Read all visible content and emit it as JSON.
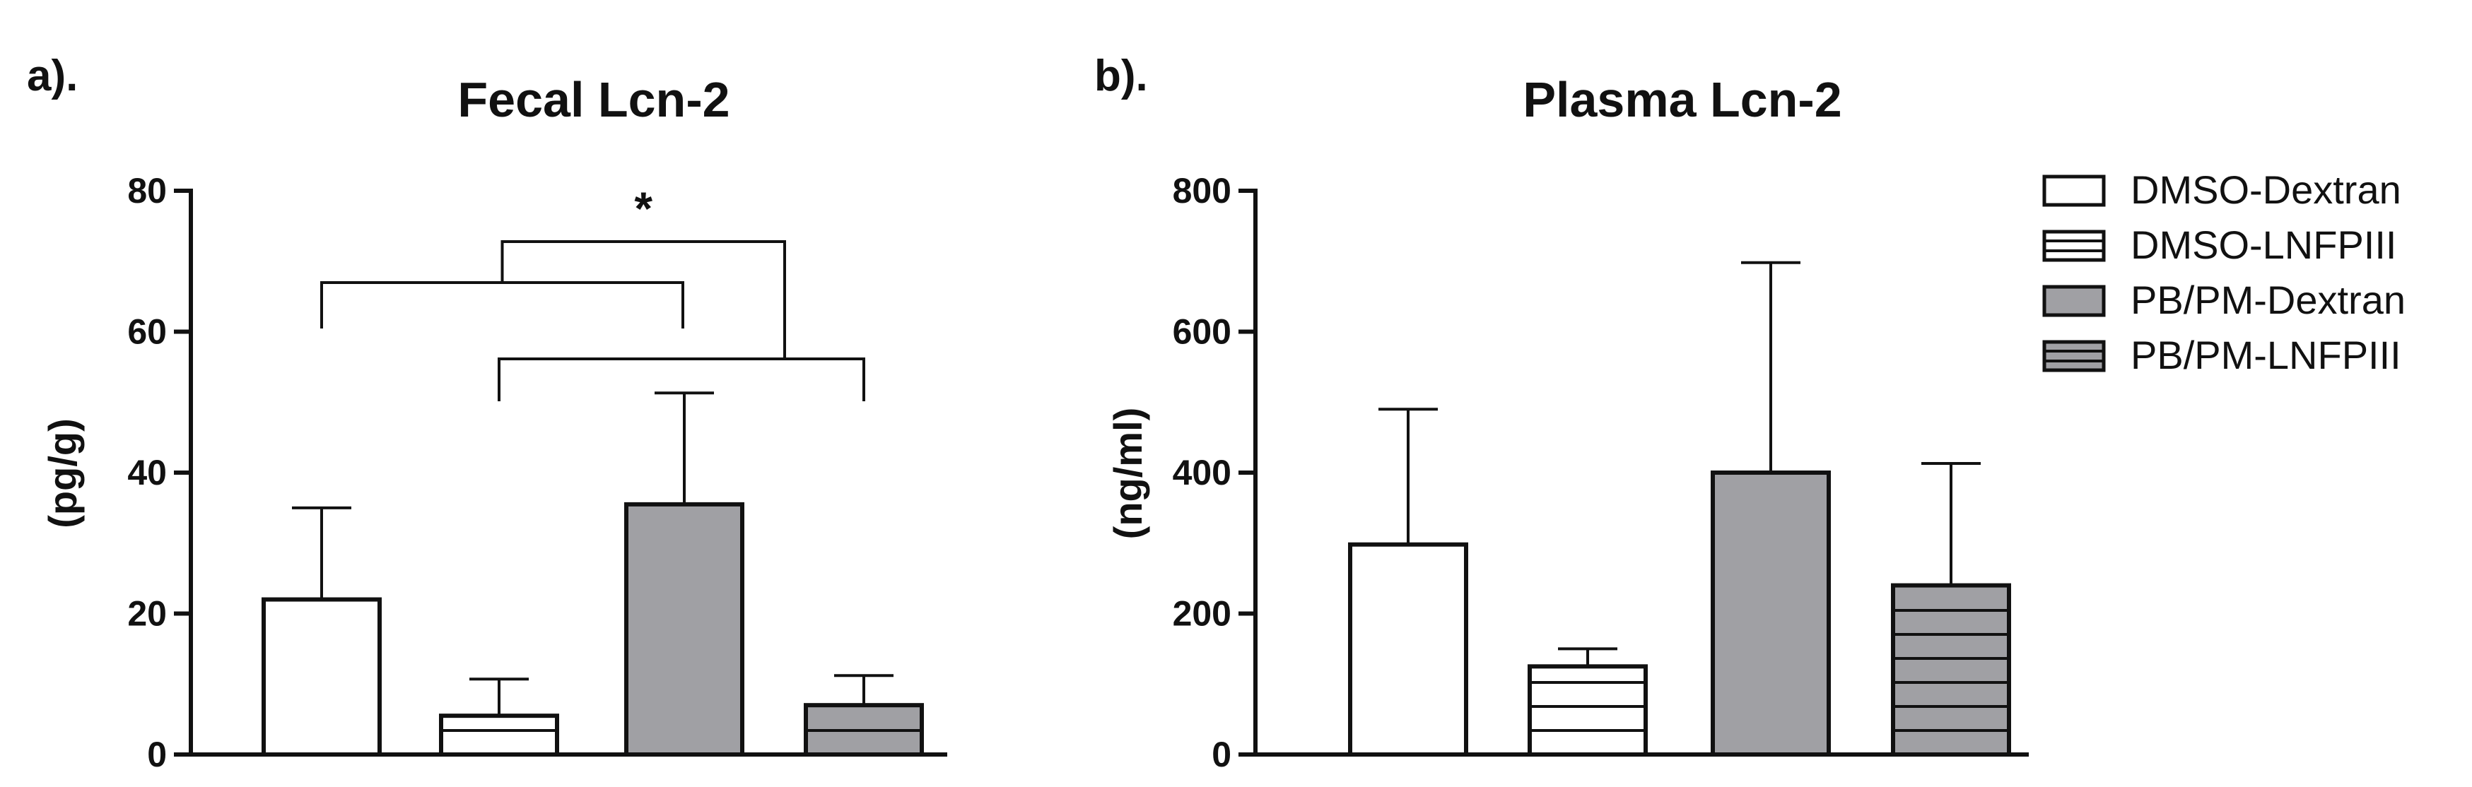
{
  "legend": [
    {
      "name": "DMSO-Dextran",
      "fill": "#ffffff",
      "pattern": "none"
    },
    {
      "name": "DMSO-LNFPIII",
      "fill": "#ffffff",
      "pattern": "hlines"
    },
    {
      "name": "PB/PM-Dextran",
      "fill": "#a0a0a4",
      "pattern": "none"
    },
    {
      "name": "PB/PM-LNFPIII",
      "fill": "#a0a0a4",
      "pattern": "hlines"
    }
  ],
  "chart_data": [
    {
      "type": "bar",
      "panel": "a).",
      "title": "Fecal Lcn-2",
      "xlabel": "",
      "ylabel": "(pg/g)",
      "ylim": [
        0,
        80
      ],
      "yticks": [
        0,
        20,
        40,
        60,
        80
      ],
      "categories": [
        "DMSO-Dextran",
        "DMSO-LNFPIII",
        "PB/PM-Dextran",
        "PB/PM-LNFPIII"
      ],
      "values": [
        22,
        5.5,
        35.5,
        7
      ],
      "error_upper": [
        35,
        10.7,
        51.3,
        11.2
      ],
      "significance": {
        "label": "*",
        "groups": [
          [
            0,
            1
          ],
          [
            2,
            3
          ]
        ]
      }
    },
    {
      "type": "bar",
      "panel": "b).",
      "title": "Plasma Lcn-2",
      "xlabel": "",
      "ylabel": "(ng/ml)",
      "ylim": [
        0,
        800
      ],
      "yticks": [
        0,
        200,
        400,
        600,
        800
      ],
      "categories": [
        "DMSO-Dextran",
        "DMSO-LNFPIII",
        "PB/PM-Dextran",
        "PB/PM-LNFPIII"
      ],
      "values": [
        298,
        125,
        400,
        240
      ],
      "error_upper": [
        490,
        150,
        698,
        413
      ]
    }
  ]
}
